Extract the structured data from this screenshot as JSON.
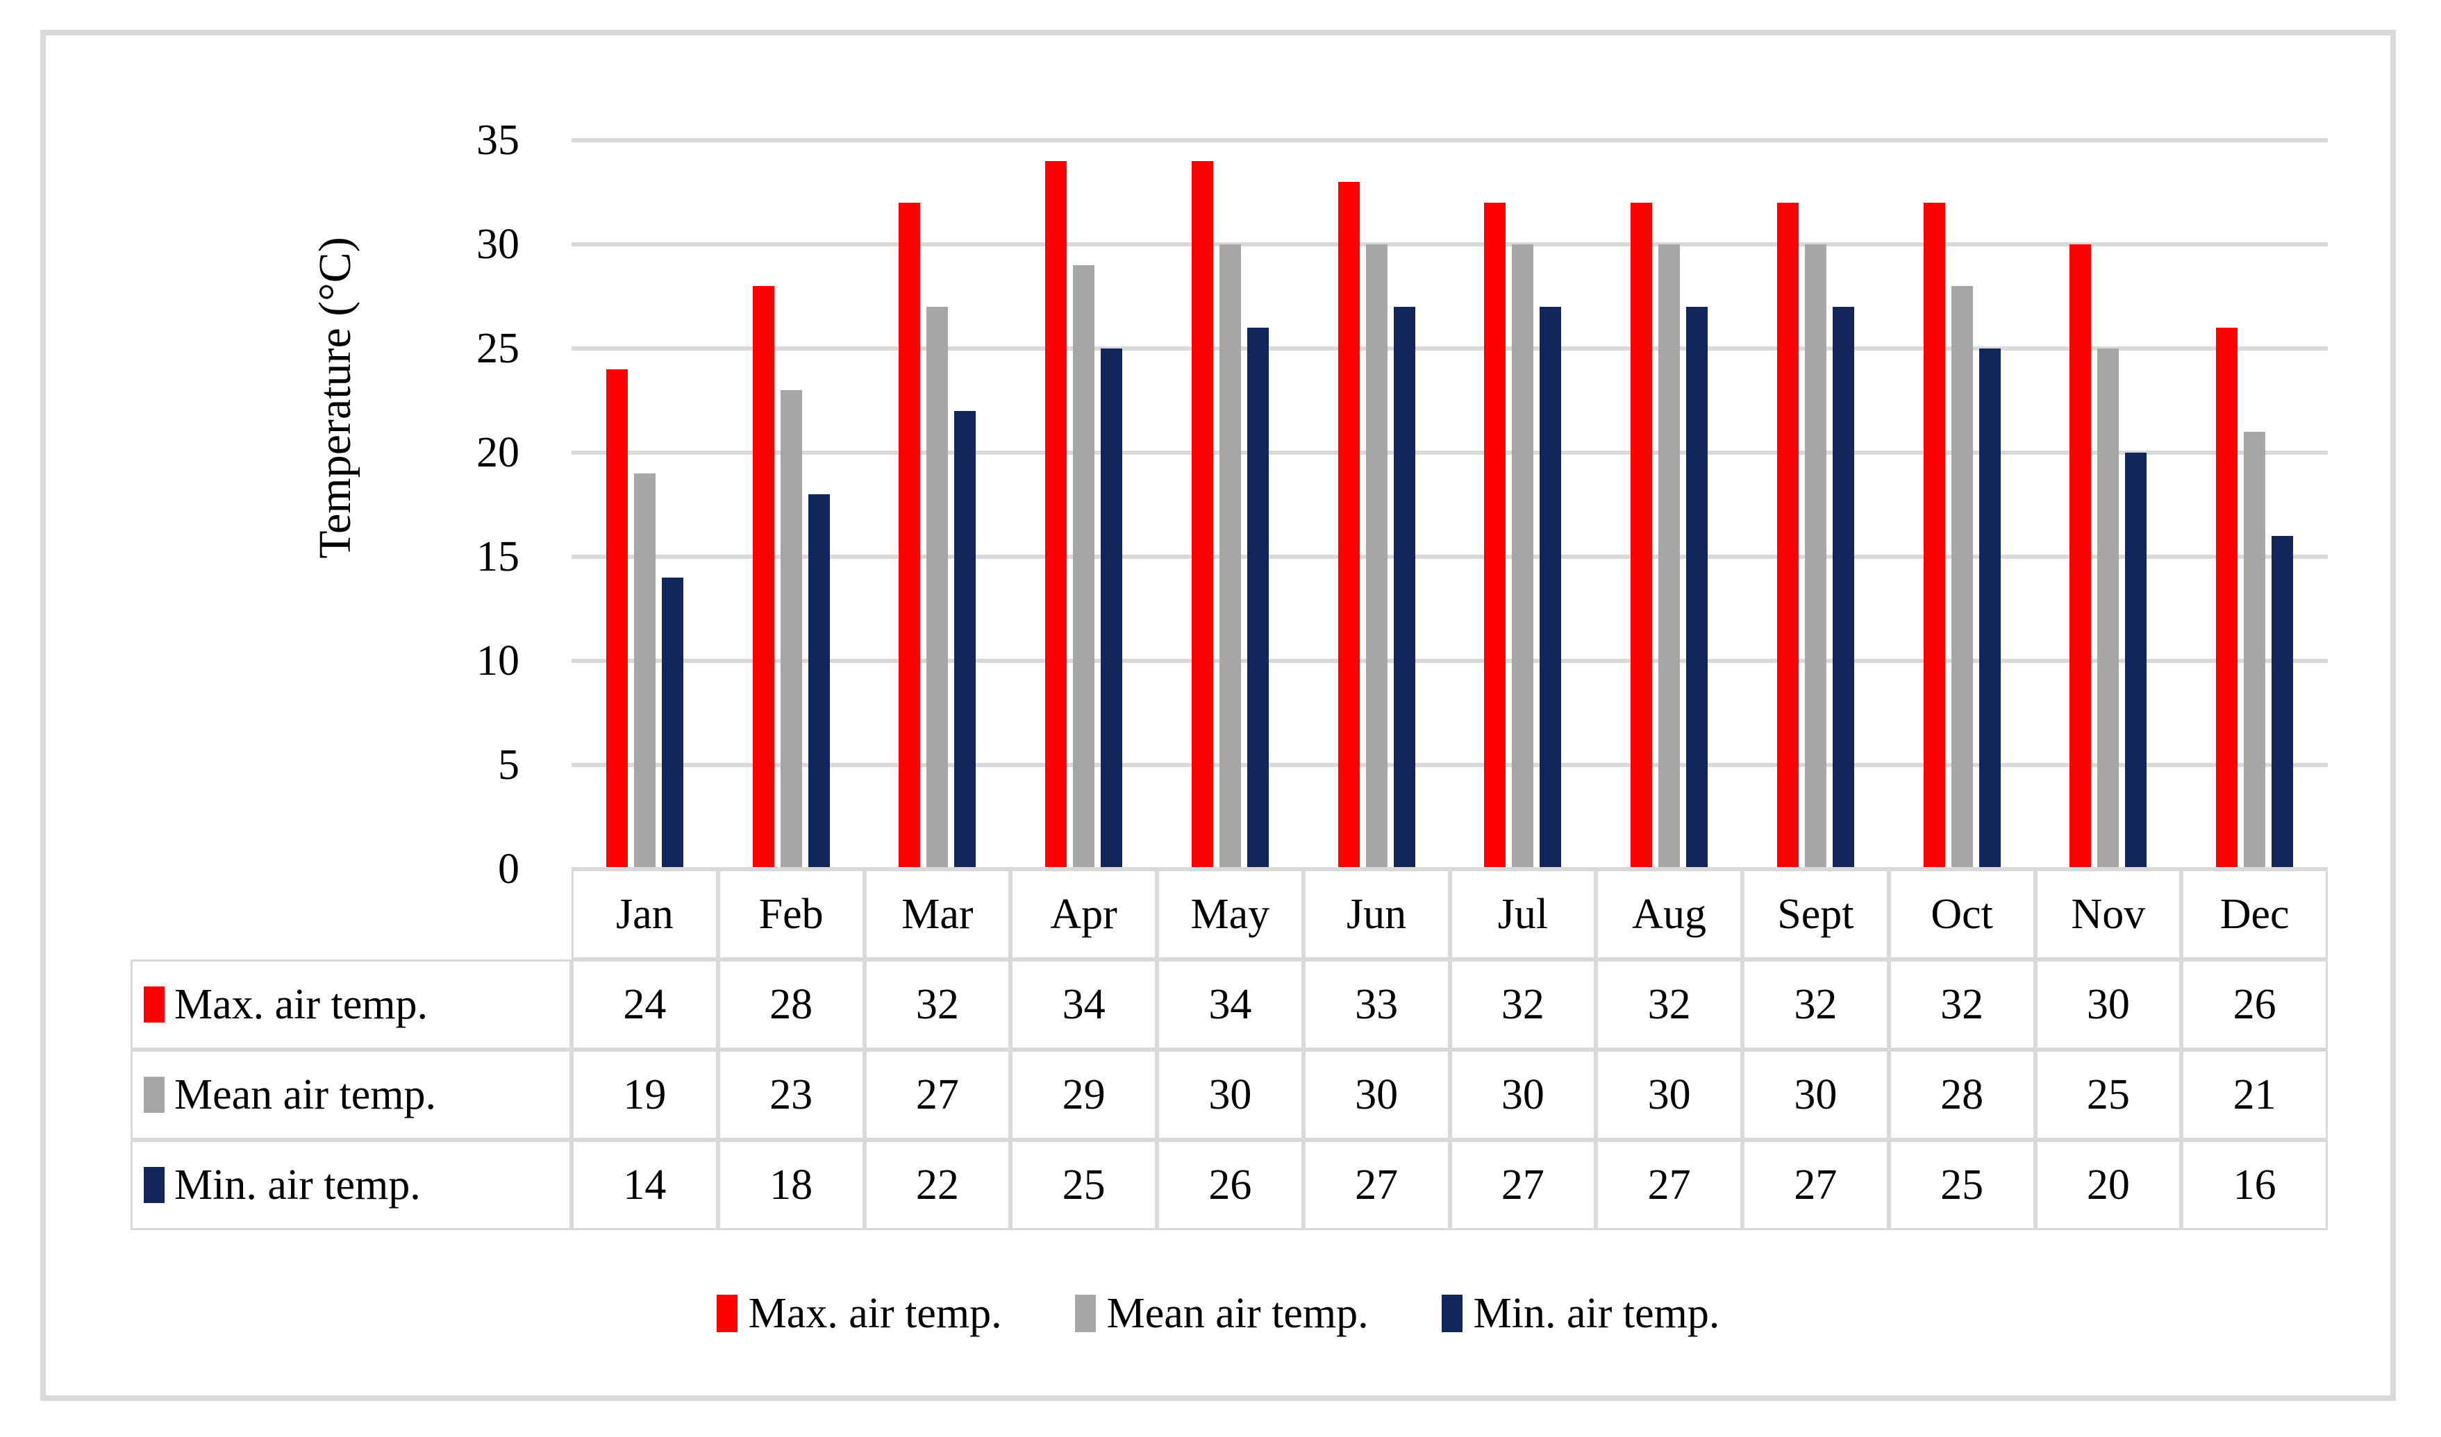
{
  "chart_data": {
    "type": "bar",
    "categories": [
      "Jan",
      "Feb",
      "Mar",
      "Apr",
      "May",
      "Jun",
      "Jul",
      "Aug",
      "Sept",
      "Oct",
      "Nov",
      "Dec"
    ],
    "series": [
      {
        "name": "Max. air temp.",
        "color": "#FF0000",
        "values": [
          24,
          28,
          32,
          34,
          34,
          33,
          32,
          32,
          32,
          32,
          30,
          26
        ]
      },
      {
        "name": "Mean air temp.",
        "color": "#A6A6A6",
        "values": [
          19,
          23,
          27,
          29,
          30,
          30,
          30,
          30,
          30,
          28,
          25,
          21
        ]
      },
      {
        "name": "Min. air temp.",
        "color": "#12265C",
        "values": [
          14,
          18,
          22,
          25,
          26,
          27,
          27,
          27,
          27,
          25,
          20,
          16
        ]
      }
    ],
    "ylabel": "Temperature (°C)",
    "ylim": [
      0,
      35
    ],
    "ytick_step": 5,
    "yticks": [
      0,
      5,
      10,
      15,
      20,
      25,
      30,
      35
    ],
    "grid": true,
    "legend_position": "bottom",
    "data_table_shown": true
  },
  "colors": {
    "gridline": "#D9D9D9",
    "frame_border": "#D9D9D9",
    "table_border": "#D9D9D9",
    "background": "#FFFFFF",
    "text": "#000000"
  }
}
